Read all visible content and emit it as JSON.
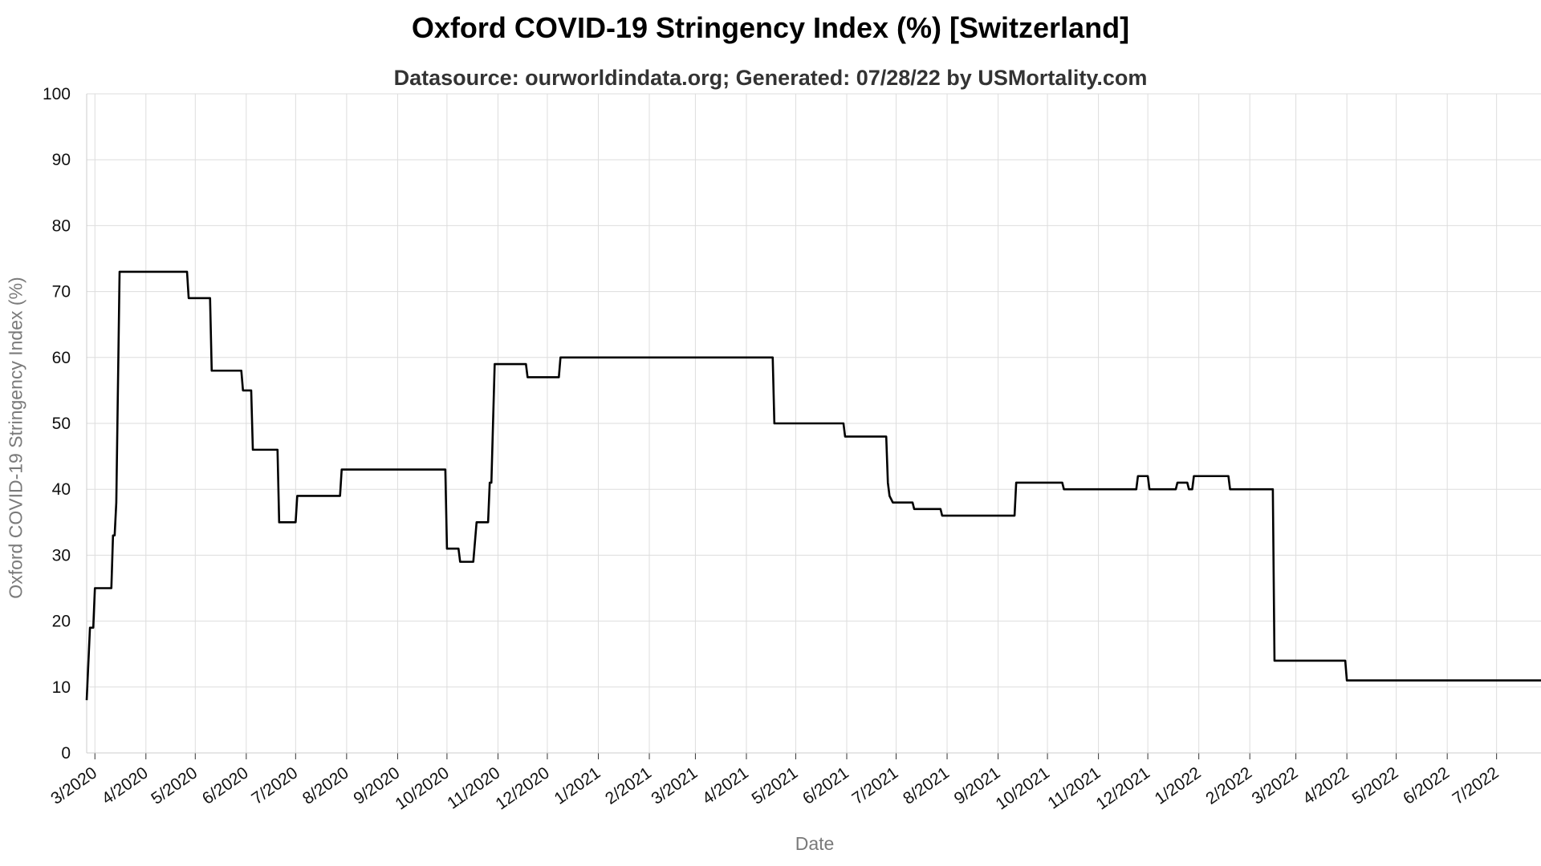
{
  "chart_data": {
    "type": "line",
    "title": "Oxford COVID-19 Stringency Index (%) [Switzerland]",
    "subtitle": "Datasource: ourworldindata.org; Generated: 07/28/22 by USMortality.com",
    "xlabel": "Date",
    "ylabel": "Oxford COVID-19 Stringency Index (%)",
    "ylim": [
      0,
      100
    ],
    "xlim": [
      "2020-02-25",
      "2022-07-28"
    ],
    "y_ticks": [
      0,
      10,
      20,
      30,
      40,
      50,
      60,
      70,
      80,
      90,
      100
    ],
    "x_ticks": [
      {
        "date": "2020-03-01",
        "label": "3/2020"
      },
      {
        "date": "2020-04-01",
        "label": "4/2020"
      },
      {
        "date": "2020-05-01",
        "label": "5/2020"
      },
      {
        "date": "2020-06-01",
        "label": "6/2020"
      },
      {
        "date": "2020-07-01",
        "label": "7/2020"
      },
      {
        "date": "2020-08-01",
        "label": "8/2020"
      },
      {
        "date": "2020-09-01",
        "label": "9/2020"
      },
      {
        "date": "2020-10-01",
        "label": "10/2020"
      },
      {
        "date": "2020-11-01",
        "label": "11/2020"
      },
      {
        "date": "2020-12-01",
        "label": "12/2020"
      },
      {
        "date": "2021-01-01",
        "label": "1/2021"
      },
      {
        "date": "2021-02-01",
        "label": "2/2021"
      },
      {
        "date": "2021-03-01",
        "label": "3/2021"
      },
      {
        "date": "2021-04-01",
        "label": "4/2021"
      },
      {
        "date": "2021-05-01",
        "label": "5/2021"
      },
      {
        "date": "2021-06-01",
        "label": "6/2021"
      },
      {
        "date": "2021-07-01",
        "label": "7/2021"
      },
      {
        "date": "2021-08-01",
        "label": "8/2021"
      },
      {
        "date": "2021-09-01",
        "label": "9/2021"
      },
      {
        "date": "2021-10-01",
        "label": "10/2021"
      },
      {
        "date": "2021-11-01",
        "label": "11/2021"
      },
      {
        "date": "2021-12-01",
        "label": "12/2021"
      },
      {
        "date": "2022-01-01",
        "label": "1/2022"
      },
      {
        "date": "2022-02-01",
        "label": "2/2022"
      },
      {
        "date": "2022-03-01",
        "label": "3/2022"
      },
      {
        "date": "2022-04-01",
        "label": "4/2022"
      },
      {
        "date": "2022-05-01",
        "label": "5/2022"
      },
      {
        "date": "2022-06-01",
        "label": "6/2022"
      },
      {
        "date": "2022-07-01",
        "label": "7/2022"
      }
    ],
    "grid": true,
    "legend": "none",
    "line_color": "#000000",
    "grid_color": "#dddddd",
    "series": [
      {
        "points": [
          [
            "2020-02-25",
            8
          ],
          [
            "2020-02-27",
            19
          ],
          [
            "2020-02-29",
            19
          ],
          [
            "2020-03-01",
            25
          ],
          [
            "2020-03-11",
            25
          ],
          [
            "2020-03-12",
            33
          ],
          [
            "2020-03-13",
            33
          ],
          [
            "2020-03-14",
            38
          ],
          [
            "2020-03-16",
            73
          ],
          [
            "2020-04-26",
            73
          ],
          [
            "2020-04-27",
            69
          ],
          [
            "2020-05-10",
            69
          ],
          [
            "2020-05-11",
            58
          ],
          [
            "2020-05-29",
            58
          ],
          [
            "2020-05-30",
            55
          ],
          [
            "2020-06-04",
            55
          ],
          [
            "2020-06-05",
            46
          ],
          [
            "2020-06-20",
            46
          ],
          [
            "2020-06-21",
            35
          ],
          [
            "2020-07-01",
            35
          ],
          [
            "2020-07-02",
            39
          ],
          [
            "2020-07-28",
            39
          ],
          [
            "2020-07-29",
            43
          ],
          [
            "2020-09-30",
            43
          ],
          [
            "2020-10-01",
            31
          ],
          [
            "2020-10-08",
            31
          ],
          [
            "2020-10-09",
            29
          ],
          [
            "2020-10-17",
            29
          ],
          [
            "2020-10-19",
            35
          ],
          [
            "2020-10-26",
            35
          ],
          [
            "2020-10-27",
            41
          ],
          [
            "2020-10-28",
            41
          ],
          [
            "2020-10-30",
            59
          ],
          [
            "2020-11-18",
            59
          ],
          [
            "2020-11-19",
            57
          ],
          [
            "2020-12-08",
            57
          ],
          [
            "2020-12-09",
            60
          ],
          [
            "2021-04-17",
            60
          ],
          [
            "2021-04-18",
            50
          ],
          [
            "2021-05-30",
            50
          ],
          [
            "2021-05-31",
            48
          ],
          [
            "2021-06-25",
            48
          ],
          [
            "2021-06-26",
            41
          ],
          [
            "2021-06-27",
            39
          ],
          [
            "2021-06-29",
            38
          ],
          [
            "2021-07-11",
            38
          ],
          [
            "2021-07-12",
            37
          ],
          [
            "2021-07-28",
            37
          ],
          [
            "2021-07-29",
            36
          ],
          [
            "2021-09-11",
            36
          ],
          [
            "2021-09-12",
            41
          ],
          [
            "2021-10-10",
            41
          ],
          [
            "2021-10-11",
            40
          ],
          [
            "2021-11-24",
            40
          ],
          [
            "2021-11-25",
            42
          ],
          [
            "2021-12-01",
            42
          ],
          [
            "2021-12-02",
            40
          ],
          [
            "2021-12-18",
            40
          ],
          [
            "2021-12-19",
            41
          ],
          [
            "2021-12-25",
            41
          ],
          [
            "2021-12-26",
            40
          ],
          [
            "2021-12-28",
            40
          ],
          [
            "2021-12-29",
            42
          ],
          [
            "2022-01-19",
            42
          ],
          [
            "2022-01-20",
            40
          ],
          [
            "2022-02-15",
            40
          ],
          [
            "2022-02-16",
            14
          ],
          [
            "2022-03-31",
            14
          ],
          [
            "2022-04-01",
            11
          ],
          [
            "2022-07-28",
            11
          ]
        ]
      }
    ]
  }
}
